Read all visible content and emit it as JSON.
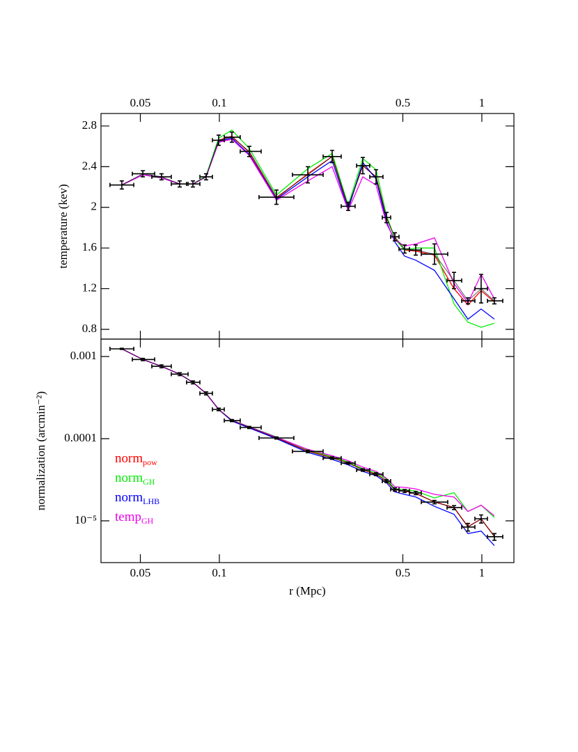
{
  "chart_data": [
    {
      "type": "line",
      "xscale": "log",
      "xlim": [
        0.0354,
        1.325
      ],
      "xticks": [
        0.05,
        0.1,
        0.5,
        1
      ],
      "xtick_position": "top",
      "ylabel": "temperature (kev)",
      "ylim": [
        0.704,
        2.923
      ],
      "yticks": [
        0.8,
        1.2,
        1.6,
        2,
        2.4,
        2.8
      ],
      "x": [
        0.0425,
        0.0511,
        0.0602,
        0.0706,
        0.0793,
        0.089,
        0.0994,
        0.1116,
        0.13,
        0.165,
        0.2173,
        0.269,
        0.3096,
        0.3519,
        0.3953,
        0.4332,
        0.4661,
        0.5077,
        0.5598,
        0.6601,
        0.7833,
        0.8851,
        0.9938,
        1.116
      ],
      "x_low": [
        0.0383,
        0.0466,
        0.0553,
        0.0656,
        0.075,
        0.0843,
        0.0941,
        0.1044,
        0.1201,
        0.1416,
        0.1898,
        0.2485,
        0.2912,
        0.3332,
        0.3741,
        0.4176,
        0.4493,
        0.4835,
        0.5299,
        0.5877,
        0.7369,
        0.8379,
        0.9408,
        1.05
      ],
      "x_high": [
        0.0472,
        0.0567,
        0.0656,
        0.076,
        0.0843,
        0.0941,
        0.1044,
        0.1201,
        0.1443,
        0.1922,
        0.2485,
        0.2912,
        0.329,
        0.3741,
        0.4201,
        0.4493,
        0.4835,
        0.5299,
        0.5877,
        0.7413,
        0.8379,
        0.9408,
        1.05,
        1.2013
      ],
      "points": {
        "color": "#000000",
        "values": [
          2.22,
          2.33,
          2.3,
          2.23,
          2.23,
          2.3,
          2.66,
          2.69,
          2.55,
          2.1,
          2.32,
          2.5,
          2.01,
          2.41,
          2.3,
          1.9,
          1.71,
          1.59,
          1.58,
          1.54,
          1.28,
          1.08,
          1.2,
          1.08
        ],
        "yerr": [
          0.04,
          0.03,
          0.03,
          0.03,
          0.03,
          0.03,
          0.05,
          0.05,
          0.05,
          0.07,
          0.08,
          0.06,
          0.04,
          0.08,
          0.07,
          0.05,
          0.04,
          0.04,
          0.05,
          0.1,
          0.08,
          0.03,
          0.14,
          0.03
        ]
      },
      "series": [
        {
          "color": "#ff0000",
          "values": [
            2.22,
            2.32,
            2.29,
            2.23,
            2.23,
            2.3,
            2.66,
            2.7,
            2.54,
            2.09,
            2.33,
            2.5,
            2.0,
            2.41,
            2.3,
            1.9,
            1.7,
            1.58,
            1.57,
            1.53,
            1.2,
            1.04,
            1.18,
            1.07
          ]
        },
        {
          "color": "#00ee00",
          "values": [
            2.22,
            2.32,
            2.29,
            2.23,
            2.23,
            2.31,
            2.68,
            2.76,
            2.58,
            2.12,
            2.38,
            2.53,
            2.02,
            2.48,
            2.37,
            1.92,
            1.69,
            1.58,
            1.6,
            1.6,
            1.05,
            0.87,
            0.82,
            0.86
          ]
        },
        {
          "color": "#0000ff",
          "values": [
            2.22,
            2.32,
            2.29,
            2.23,
            2.23,
            2.3,
            2.65,
            2.68,
            2.52,
            2.08,
            2.3,
            2.46,
            1.98,
            2.44,
            2.28,
            1.86,
            1.66,
            1.52,
            1.48,
            1.38,
            1.1,
            0.9,
            1.0,
            0.9
          ]
        },
        {
          "color": "#ee00ee",
          "values": [
            2.22,
            2.32,
            2.29,
            2.23,
            2.23,
            2.3,
            2.64,
            2.67,
            2.51,
            2.07,
            2.26,
            2.4,
            1.97,
            2.3,
            2.22,
            1.84,
            1.68,
            1.62,
            1.64,
            1.7,
            1.25,
            1.06,
            1.34,
            1.1
          ]
        }
      ]
    },
    {
      "type": "line",
      "xscale": "log",
      "yscale": "log",
      "xlim": [
        0.0354,
        1.325
      ],
      "xticks": [
        0.05,
        0.1,
        0.5,
        1
      ],
      "xtick_position": "bottom",
      "xlabel": "r (Mpc)",
      "ylabel": "normalization (arcmin⁻²)",
      "ylim": [
        3.1e-06,
        0.00163
      ],
      "yticks": [
        0.001,
        0.0001,
        {
          "value": 1e-05,
          "label": "10⁻⁵"
        }
      ],
      "legend": "left",
      "x": [
        0.0425,
        0.0511,
        0.0602,
        0.0706,
        0.0793,
        0.089,
        0.0994,
        0.1116,
        0.13,
        0.165,
        0.2173,
        0.269,
        0.3096,
        0.3519,
        0.3953,
        0.4332,
        0.4661,
        0.5077,
        0.5598,
        0.6601,
        0.7833,
        0.8851,
        0.9938,
        1.116
      ],
      "x_low": [
        0.0383,
        0.0466,
        0.0553,
        0.0656,
        0.075,
        0.0843,
        0.0941,
        0.1044,
        0.1201,
        0.1416,
        0.1898,
        0.2485,
        0.2912,
        0.3332,
        0.3741,
        0.4176,
        0.4493,
        0.4835,
        0.5299,
        0.5877,
        0.7369,
        0.8379,
        0.9408,
        1.05
      ],
      "x_high": [
        0.0472,
        0.0567,
        0.0656,
        0.076,
        0.0843,
        0.0941,
        0.1044,
        0.1201,
        0.1443,
        0.1922,
        0.2485,
        0.2912,
        0.329,
        0.3741,
        0.4201,
        0.4493,
        0.4835,
        0.5299,
        0.5877,
        0.7413,
        0.8379,
        0.9408,
        1.05,
        1.2013
      ],
      "points": {
        "color": "#000000",
        "values": [
          0.00124,
          0.00092,
          0.00076,
          0.00061,
          0.000485,
          0.000356,
          0.000227,
          0.000166,
          0.000137,
          0.000102,
          7e-05,
          5.8e-05,
          5.05e-05,
          4.16e-05,
          3.7e-05,
          3.04e-05,
          2.41e-05,
          2.31e-05,
          2.18e-05,
          1.69e-05,
          1.45e-05,
          8.4e-06,
          1.06e-05,
          6.4e-06
        ],
        "yerr": [
          2e-05,
          3e-05,
          3e-05,
          2.5e-05,
          2e-05,
          1.5e-05,
          8e-06,
          5e-06,
          4e-06,
          3e-06,
          2.5e-06,
          2e-06,
          1.5e-06,
          1.5e-06,
          1.5e-06,
          1.3e-06,
          1.1e-06,
          1e-06,
          1e-06,
          8e-07,
          8e-07,
          9e-07,
          1.2e-06,
          6e-07
        ]
      },
      "series": [
        {
          "name": "norm",
          "sub": "pow",
          "color": "#ff0000",
          "values": [
            0.00124,
            0.00092,
            0.00076,
            0.00061,
            0.000485,
            0.000356,
            0.000227,
            0.000166,
            0.000137,
            0.000102,
            7.1e-05,
            5.9e-05,
            5.1e-05,
            4.2e-05,
            3.7e-05,
            3.05e-05,
            2.4e-05,
            2.3e-05,
            2.15e-05,
            1.7e-05,
            1.45e-05,
            8.5e-06,
            1.05e-05,
            6.5e-06
          ]
        },
        {
          "name": "norm",
          "sub": "GH",
          "color": "#00ee00",
          "values": [
            0.00124,
            0.00092,
            0.00076,
            0.00061,
            0.000485,
            0.000356,
            0.000227,
            0.000168,
            0.00014,
            0.000105,
            7.3e-05,
            6e-05,
            5.2e-05,
            4.3e-05,
            3.85e-05,
            3.2e-05,
            2.45e-05,
            2.4e-05,
            2.3e-05,
            1.9e-05,
            2.2e-05,
            1.3e-05,
            1.55e-05,
            1.1e-05
          ]
        },
        {
          "name": "norm",
          "sub": "LHB",
          "color": "#0000ff",
          "values": [
            0.00124,
            0.00092,
            0.00076,
            0.00061,
            0.000485,
            0.000356,
            0.000227,
            0.000164,
            0.000135,
            0.0001,
            6.8e-05,
            5.6e-05,
            4.8e-05,
            4e-05,
            3.55e-05,
            2.9e-05,
            2.25e-05,
            2.1e-05,
            1.95e-05,
            1.5e-05,
            1.2e-05,
            7e-06,
            7.5e-06,
            5e-06
          ]
        },
        {
          "name": "temp",
          "sub": "GH",
          "color": "#ee00ee",
          "values": [
            0.00124,
            0.00092,
            0.00076,
            0.00061,
            0.000485,
            0.000356,
            0.000227,
            0.000167,
            0.000139,
            0.000104,
            7.4e-05,
            6.2e-05,
            5.4e-05,
            4.5e-05,
            4e-05,
            3.3e-05,
            2.6e-05,
            2.55e-05,
            2.45e-05,
            2.1e-05,
            1.95e-05,
            1.3e-05,
            1.55e-05,
            1.15e-05
          ]
        }
      ]
    }
  ]
}
